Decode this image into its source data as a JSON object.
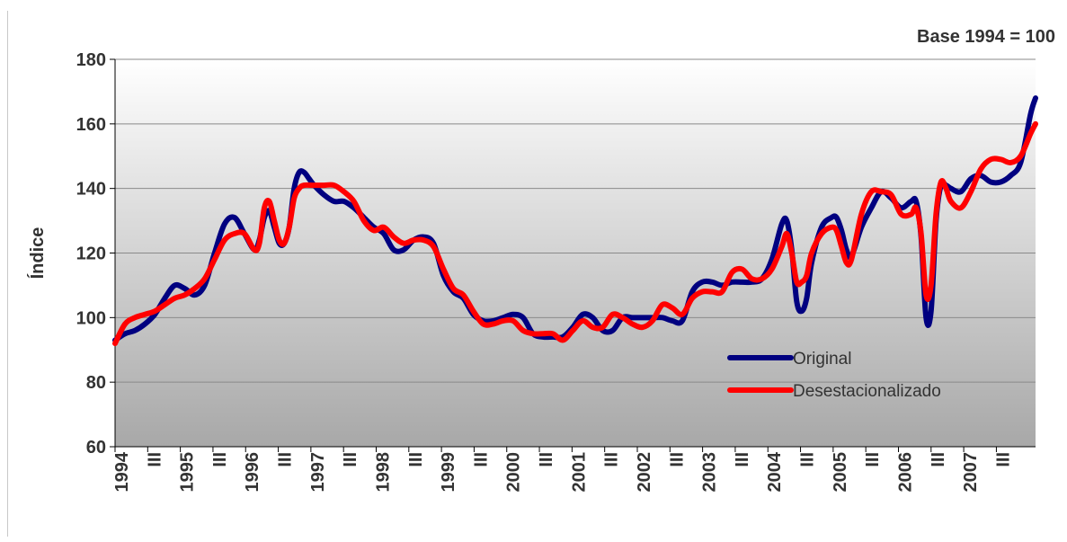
{
  "note": "Base 1994 = 100",
  "chart_data": {
    "type": "line",
    "ylabel": "Índice",
    "xlabel": "",
    "ylim": [
      60,
      180
    ],
    "yticks": [
      60,
      80,
      100,
      120,
      140,
      160,
      180
    ],
    "grid": true,
    "legend_position": "bottom-right",
    "x_tick_labels": [
      "1994",
      "III",
      "1995",
      "III",
      "1996",
      "III",
      "1997",
      "III",
      "1998",
      "III",
      "1999",
      "III",
      "2000",
      "III",
      "2001",
      "III",
      "2002",
      "III",
      "2003",
      "III",
      "2004",
      "III",
      "2005",
      "III",
      "2006",
      "III",
      "2007",
      "III"
    ],
    "x_start": "1994-01",
    "x_end": "2007-12",
    "colors": {
      "original": "#000080",
      "desestacionalizado": "#ff0000",
      "plot_bg_top": "#ffffff",
      "plot_bg_bottom": "#a8a8a8"
    },
    "series": [
      {
        "name": "Original",
        "color": "#000080",
        "points": [
          [
            "1994-01",
            93
          ],
          [
            "1994-03",
            95
          ],
          [
            "1994-05",
            96
          ],
          [
            "1994-07",
            98
          ],
          [
            "1994-09",
            101
          ],
          [
            "1994-11",
            106
          ],
          [
            "1995-01",
            110
          ],
          [
            "1995-03",
            109
          ],
          [
            "1995-05",
            107
          ],
          [
            "1995-07",
            110
          ],
          [
            "1995-09",
            120
          ],
          [
            "1995-11",
            129
          ],
          [
            "1996-01",
            131
          ],
          [
            "1996-03",
            126
          ],
          [
            "1996-05",
            121
          ],
          [
            "1996-06",
            124
          ],
          [
            "1996-07",
            131
          ],
          [
            "1996-08",
            133
          ],
          [
            "1996-09",
            128
          ],
          [
            "1996-10",
            123
          ],
          [
            "1996-11",
            123
          ],
          [
            "1996-12",
            128
          ],
          [
            "1997-01",
            140
          ],
          [
            "1997-02",
            145
          ],
          [
            "1997-03",
            145
          ],
          [
            "1997-04",
            143
          ],
          [
            "1997-05",
            141
          ],
          [
            "1997-07",
            138
          ],
          [
            "1997-09",
            136
          ],
          [
            "1997-11",
            136
          ],
          [
            "1998-01",
            134
          ],
          [
            "1998-03",
            131
          ],
          [
            "1998-05",
            128
          ],
          [
            "1998-07",
            126
          ],
          [
            "1998-09",
            121
          ],
          [
            "1998-11",
            121
          ],
          [
            "1999-01",
            124
          ],
          [
            "1999-03",
            125
          ],
          [
            "1999-05",
            123
          ],
          [
            "1999-07",
            113
          ],
          [
            "1999-09",
            108
          ],
          [
            "1999-11",
            106
          ],
          [
            "2000-01",
            101
          ],
          [
            "2000-03",
            99
          ],
          [
            "2000-05",
            99
          ],
          [
            "2000-07",
            100
          ],
          [
            "2000-09",
            101
          ],
          [
            "2000-11",
            100
          ],
          [
            "2001-01",
            95
          ],
          [
            "2001-03",
            94
          ],
          [
            "2001-05",
            94
          ],
          [
            "2001-07",
            94
          ],
          [
            "2001-09",
            97
          ],
          [
            "2001-11",
            101
          ],
          [
            "2002-01",
            100
          ],
          [
            "2002-03",
            96
          ],
          [
            "2002-05",
            96
          ],
          [
            "2002-07",
            100
          ],
          [
            "2002-09",
            100
          ],
          [
            "2002-11",
            100
          ],
          [
            "2003-01",
            100
          ],
          [
            "2003-03",
            100
          ],
          [
            "2003-05",
            99
          ],
          [
            "2003-07",
            99
          ],
          [
            "2003-09",
            108
          ],
          [
            "2003-11",
            111
          ],
          [
            "2004-01",
            111
          ],
          [
            "2004-03",
            110
          ],
          [
            "2004-05",
            111
          ],
          [
            "2004-07",
            111
          ],
          [
            "2004-09",
            111
          ],
          [
            "2004-11",
            112
          ],
          [
            "2005-01",
            118
          ],
          [
            "2005-03",
            129
          ],
          [
            "2005-04",
            130
          ],
          [
            "2005-05",
            121
          ],
          [
            "2005-06",
            105
          ],
          [
            "2005-07",
            102
          ],
          [
            "2005-08",
            106
          ],
          [
            "2005-09",
            117
          ],
          [
            "2005-11",
            128
          ],
          [
            "2006-01",
            131
          ],
          [
            "2006-02",
            131
          ],
          [
            "2006-03",
            127
          ],
          [
            "2006-04",
            121
          ],
          [
            "2006-05",
            119
          ],
          [
            "2006-07",
            128
          ],
          [
            "2006-09",
            134
          ],
          [
            "2006-11",
            139
          ],
          [
            "2007-01",
            137
          ],
          [
            "2007-03",
            134
          ],
          [
            "2007-05",
            136
          ],
          [
            "2007-06",
            136
          ],
          [
            "2007-07",
            125
          ],
          [
            "2007-08",
            100
          ],
          [
            "2007-09",
            102
          ],
          [
            "2007-10",
            130
          ],
          [
            "2007-11",
            141
          ],
          [
            "2007-12",
            141
          ],
          [
            "2008-01",
            140
          ],
          [
            "2008-03",
            139
          ],
          [
            "2008-05",
            143
          ],
          [
            "2008-07",
            144
          ],
          [
            "2008-09",
            142
          ],
          [
            "2008-11",
            142
          ],
          [
            "2009-01",
            144
          ],
          [
            "2009-03",
            148
          ],
          [
            "2009-05",
            163
          ],
          [
            "2009-06",
            168
          ]
        ]
      },
      {
        "name": "Desestacionalizado",
        "color": "#ff0000",
        "points": [
          [
            "1994-01",
            92
          ],
          [
            "1994-03",
            98
          ],
          [
            "1994-05",
            100
          ],
          [
            "1994-07",
            101
          ],
          [
            "1994-09",
            102
          ],
          [
            "1994-11",
            104
          ],
          [
            "1995-01",
            106
          ],
          [
            "1995-03",
            107
          ],
          [
            "1995-05",
            109
          ],
          [
            "1995-07",
            112
          ],
          [
            "1995-09",
            118
          ],
          [
            "1995-11",
            124
          ],
          [
            "1996-01",
            126
          ],
          [
            "1996-03",
            126
          ],
          [
            "1996-05",
            121
          ],
          [
            "1996-06",
            123
          ],
          [
            "1996-07",
            134
          ],
          [
            "1996-08",
            136
          ],
          [
            "1996-09",
            130
          ],
          [
            "1996-10",
            124
          ],
          [
            "1996-11",
            123
          ],
          [
            "1996-12",
            128
          ],
          [
            "1997-01",
            137
          ],
          [
            "1997-02",
            140
          ],
          [
            "1997-03",
            141
          ],
          [
            "1997-05",
            141
          ],
          [
            "1997-07",
            141
          ],
          [
            "1997-09",
            141
          ],
          [
            "1997-11",
            139
          ],
          [
            "1998-01",
            136
          ],
          [
            "1998-03",
            130
          ],
          [
            "1998-05",
            127
          ],
          [
            "1998-07",
            128
          ],
          [
            "1998-09",
            125
          ],
          [
            "1998-11",
            123
          ],
          [
            "1999-01",
            124
          ],
          [
            "1999-03",
            124
          ],
          [
            "1999-05",
            122
          ],
          [
            "1999-07",
            115
          ],
          [
            "1999-09",
            109
          ],
          [
            "1999-11",
            107
          ],
          [
            "2000-01",
            102
          ],
          [
            "2000-03",
            98
          ],
          [
            "2000-05",
            98
          ],
          [
            "2000-07",
            99
          ],
          [
            "2000-09",
            99
          ],
          [
            "2000-11",
            96
          ],
          [
            "2001-01",
            95
          ],
          [
            "2001-03",
            95
          ],
          [
            "2001-05",
            95
          ],
          [
            "2001-07",
            93
          ],
          [
            "2001-09",
            96
          ],
          [
            "2001-11",
            99
          ],
          [
            "2002-01",
            97
          ],
          [
            "2002-03",
            97
          ],
          [
            "2002-05",
            101
          ],
          [
            "2002-07",
            100
          ],
          [
            "2002-09",
            98
          ],
          [
            "2002-11",
            97
          ],
          [
            "2003-01",
            99
          ],
          [
            "2003-03",
            104
          ],
          [
            "2003-05",
            103
          ],
          [
            "2003-07",
            101
          ],
          [
            "2003-09",
            106
          ],
          [
            "2003-11",
            108
          ],
          [
            "2004-01",
            108
          ],
          [
            "2004-03",
            108
          ],
          [
            "2004-05",
            114
          ],
          [
            "2004-07",
            115
          ],
          [
            "2004-09",
            112
          ],
          [
            "2004-11",
            112
          ],
          [
            "2005-01",
            115
          ],
          [
            "2005-03",
            122
          ],
          [
            "2005-04",
            126
          ],
          [
            "2005-05",
            120
          ],
          [
            "2005-06",
            111
          ],
          [
            "2005-07",
            111
          ],
          [
            "2005-08",
            113
          ],
          [
            "2005-09",
            120
          ],
          [
            "2005-11",
            126
          ],
          [
            "2006-01",
            128
          ],
          [
            "2006-02",
            127
          ],
          [
            "2006-03",
            122
          ],
          [
            "2006-04",
            117
          ],
          [
            "2006-05",
            118
          ],
          [
            "2006-07",
            132
          ],
          [
            "2006-09",
            139
          ],
          [
            "2006-11",
            139
          ],
          [
            "2007-01",
            138
          ],
          [
            "2007-03",
            132
          ],
          [
            "2007-05",
            132
          ],
          [
            "2007-06",
            134
          ],
          [
            "2007-07",
            126
          ],
          [
            "2007-08",
            107
          ],
          [
            "2007-09",
            110
          ],
          [
            "2007-10",
            132
          ],
          [
            "2007-11",
            142
          ],
          [
            "2007-12",
            140
          ],
          [
            "2008-01",
            136
          ],
          [
            "2008-03",
            134
          ],
          [
            "2008-05",
            139
          ],
          [
            "2008-07",
            146
          ],
          [
            "2008-09",
            149
          ],
          [
            "2008-11",
            149
          ],
          [
            "2009-01",
            148
          ],
          [
            "2009-03",
            150
          ],
          [
            "2009-05",
            157
          ],
          [
            "2009-06",
            160
          ]
        ]
      }
    ]
  }
}
